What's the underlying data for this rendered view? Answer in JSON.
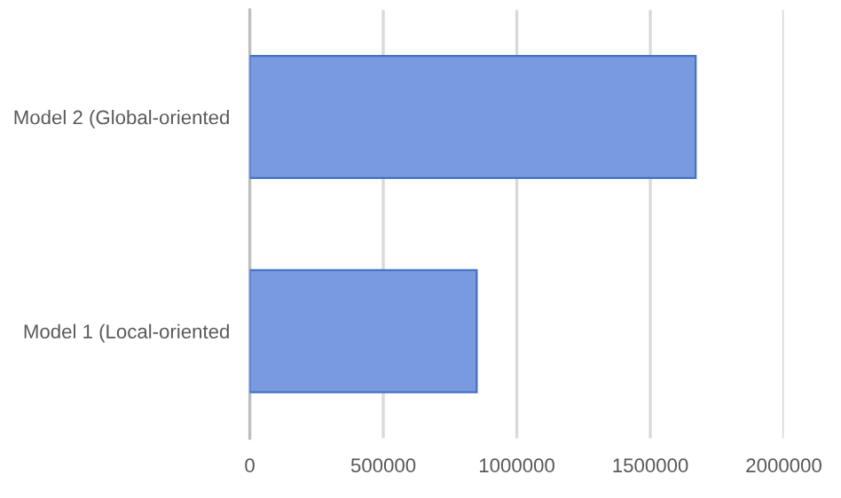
{
  "chart_data": {
    "type": "bar",
    "orientation": "horizontal",
    "categories": [
      "Model 2 (Global-oriented",
      "Model 1 (Local-oriented"
    ],
    "values": [
      1670000,
      850000
    ],
    "color": "#7a9ae0",
    "xlim": [
      0,
      2000000
    ],
    "xticks": [
      0,
      500000,
      1000000,
      1500000,
      2000000
    ],
    "grid": "x"
  }
}
